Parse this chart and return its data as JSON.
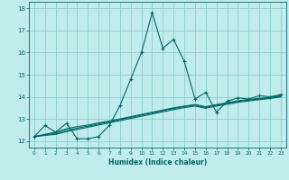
{
  "xlabel": "Humidex (Indice chaleur)",
  "bg_color": "#c0ecec",
  "grid_color": "#80c8c8",
  "line_color": "#006666",
  "xlim": [
    -0.5,
    23.5
  ],
  "ylim": [
    11.7,
    18.3
  ],
  "xticks": [
    0,
    1,
    2,
    3,
    4,
    5,
    6,
    7,
    8,
    9,
    10,
    11,
    12,
    13,
    14,
    15,
    16,
    17,
    18,
    19,
    20,
    21,
    22,
    23
  ],
  "yticks": [
    12,
    13,
    14,
    15,
    16,
    17,
    18
  ],
  "series1": {
    "x": [
      0,
      1,
      2,
      3,
      4,
      5,
      6,
      7,
      8,
      9,
      10,
      11,
      12,
      13,
      14,
      15,
      16,
      17,
      18,
      19,
      20,
      21,
      22,
      23
    ],
    "y": [
      12.2,
      12.7,
      12.4,
      12.8,
      12.1,
      12.1,
      12.2,
      12.7,
      13.6,
      14.8,
      16.0,
      17.8,
      16.2,
      16.6,
      15.6,
      13.9,
      14.2,
      13.3,
      13.8,
      13.95,
      13.9,
      14.05,
      14.0,
      14.1
    ]
  },
  "series2": {
    "x": [
      0,
      2,
      3,
      4,
      5,
      6,
      7,
      8,
      9,
      10,
      11,
      12,
      13,
      14,
      15,
      16,
      17,
      18,
      19,
      20,
      21,
      22,
      23
    ],
    "y": [
      12.2,
      12.4,
      12.55,
      12.65,
      12.72,
      12.82,
      12.9,
      13.0,
      13.1,
      13.2,
      13.3,
      13.4,
      13.5,
      13.58,
      13.65,
      13.55,
      13.65,
      13.73,
      13.82,
      13.88,
      13.93,
      13.97,
      14.05
    ]
  },
  "series3": {
    "x": [
      0,
      2,
      3,
      4,
      5,
      6,
      7,
      8,
      9,
      10,
      11,
      12,
      13,
      14,
      15,
      16,
      17,
      18,
      19,
      20,
      21,
      22,
      23
    ],
    "y": [
      12.2,
      12.35,
      12.48,
      12.58,
      12.67,
      12.77,
      12.87,
      12.97,
      13.07,
      13.17,
      13.27,
      13.37,
      13.47,
      13.56,
      13.62,
      13.52,
      13.62,
      13.7,
      13.79,
      13.85,
      13.9,
      13.95,
      14.02
    ]
  },
  "series4": {
    "x": [
      0,
      2,
      3,
      4,
      5,
      6,
      7,
      8,
      9,
      10,
      11,
      12,
      13,
      14,
      15,
      16,
      17,
      18,
      19,
      20,
      21,
      22,
      23
    ],
    "y": [
      12.2,
      12.3,
      12.42,
      12.52,
      12.62,
      12.72,
      12.82,
      12.92,
      13.02,
      13.12,
      13.22,
      13.32,
      13.42,
      13.51,
      13.58,
      13.48,
      13.58,
      13.66,
      13.75,
      13.81,
      13.87,
      13.92,
      13.99
    ]
  }
}
